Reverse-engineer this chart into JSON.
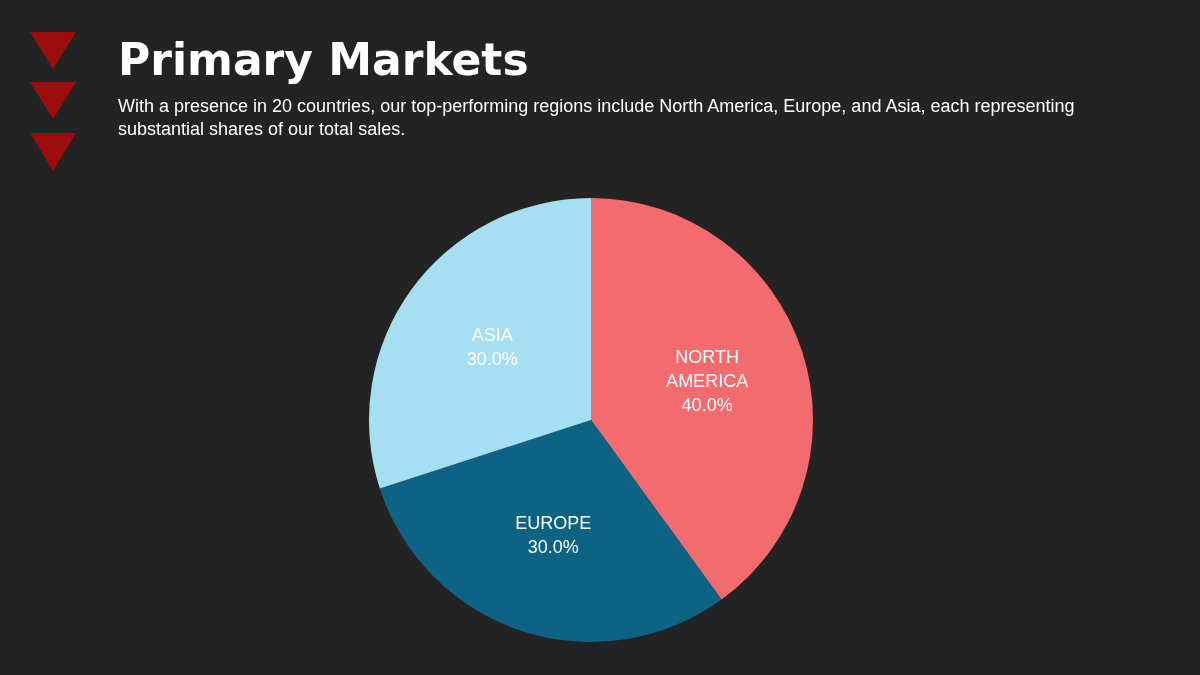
{
  "chart_data": {
    "type": "pie",
    "title": "Primary Markets",
    "subtitle": "With a presence in 20 countries, our top-performing regions include North America, Europe, and Asia, each representing substantial shares of our total sales.",
    "categories": [
      "NORTH AMERICA",
      "EUROPE",
      "ASIA"
    ],
    "values": [
      40,
      30,
      30
    ],
    "value_labels": [
      "40.0%",
      "30.0%",
      "30.0%"
    ],
    "colors": [
      "#f26b6f",
      "#0c6383",
      "#a6dff2"
    ],
    "legend": false
  }
}
